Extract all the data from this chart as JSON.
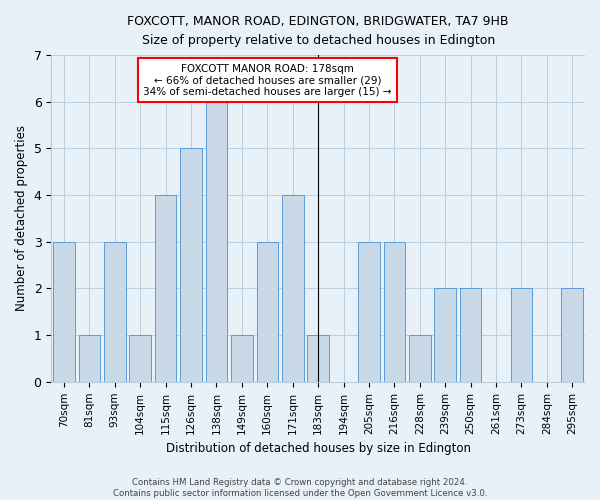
{
  "title_line1": "FOXCOTT, MANOR ROAD, EDINGTON, BRIDGWATER, TA7 9HB",
  "title_line2": "Size of property relative to detached houses in Edington",
  "xlabel": "Distribution of detached houses by size in Edington",
  "ylabel": "Number of detached properties",
  "categories": [
    "70sqm",
    "81sqm",
    "93sqm",
    "104sqm",
    "115sqm",
    "126sqm",
    "138sqm",
    "149sqm",
    "160sqm",
    "171sqm",
    "183sqm",
    "194sqm",
    "205sqm",
    "216sqm",
    "228sqm",
    "239sqm",
    "250sqm",
    "261sqm",
    "273sqm",
    "284sqm",
    "295sqm"
  ],
  "values": [
    3,
    1,
    3,
    1,
    4,
    5,
    6,
    1,
    3,
    4,
    1,
    0,
    3,
    3,
    1,
    2,
    2,
    0,
    2,
    0,
    2
  ],
  "bar_color": "#c9d9e8",
  "bar_edge_color": "#5b9bd5",
  "highlight_index": 10,
  "annotation_text": "FOXCOTT MANOR ROAD: 178sqm\n← 66% of detached houses are smaller (29)\n34% of semi-detached houses are larger (15) →",
  "annotation_box_color": "white",
  "annotation_box_edge_color": "red",
  "footnote": "Contains HM Land Registry data © Crown copyright and database right 2024.\nContains public sector information licensed under the Open Government Licence v3.0.",
  "ylim": [
    0,
    7
  ],
  "yticks": [
    0,
    1,
    2,
    3,
    4,
    5,
    6,
    7
  ],
  "grid_color": "#b8cfe0",
  "background_color": "#e8f0f8"
}
